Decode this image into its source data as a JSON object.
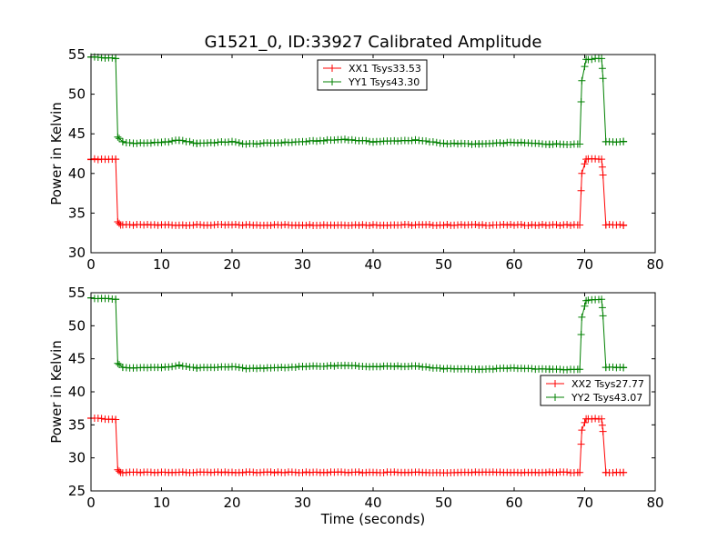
{
  "chart_data": [
    {
      "type": "line",
      "title": "G1521_0, ID:33927 Calibrated Amplitude",
      "xlabel": "",
      "ylabel": "Power in Kelvin",
      "xlim": [
        0,
        80
      ],
      "ylim": [
        30,
        55
      ],
      "xticks": [
        "0",
        "10",
        "20",
        "30",
        "40",
        "50",
        "60",
        "70",
        "80"
      ],
      "yticks": [
        "30",
        "35",
        "40",
        "45",
        "50",
        "55"
      ],
      "legend_position": "top-center",
      "series": [
        {
          "name": "XX1 Tsys33.53",
          "color": "#ff0000",
          "marker": "+",
          "x": [
            0,
            3.5,
            3.8,
            4.2,
            69.3,
            69.6,
            70.2,
            72.4,
            72.6,
            73,
            75.5
          ],
          "y": [
            41.8,
            41.8,
            33.9,
            33.5,
            33.5,
            40,
            41.8,
            41.8,
            39.8,
            33.5,
            33.5
          ]
        },
        {
          "name": "YY1 Tsys43.30",
          "color": "#008000",
          "marker": "+",
          "x": [
            0,
            3.5,
            3.8,
            4.5,
            6,
            10,
            12.5,
            15,
            20,
            22,
            30,
            36,
            40,
            46,
            50,
            55,
            60,
            65,
            69.3,
            69.6,
            70.2,
            72.4,
            72.6,
            73,
            75.5
          ],
          "y": [
            54.7,
            54.5,
            44.6,
            44.0,
            43.8,
            43.9,
            44.2,
            43.8,
            44.0,
            43.7,
            44.0,
            44.3,
            44.0,
            44.2,
            43.8,
            43.7,
            43.9,
            43.7,
            43.7,
            51.7,
            54.4,
            54.5,
            52.0,
            44.0,
            44.0
          ]
        }
      ]
    },
    {
      "type": "line",
      "title": "",
      "xlabel": "Time (seconds)",
      "ylabel": "Power in Kelvin",
      "xlim": [
        0,
        80
      ],
      "ylim": [
        25,
        55
      ],
      "xticks": [
        "0",
        "10",
        "20",
        "30",
        "40",
        "50",
        "60",
        "70",
        "80"
      ],
      "yticks": [
        "25",
        "30",
        "35",
        "40",
        "45",
        "50",
        "55"
      ],
      "legend_position": "center-right",
      "series": [
        {
          "name": "XX2 Tsys27.77",
          "color": "#ff0000",
          "marker": "+",
          "x": [
            0,
            3.5,
            3.8,
            4.2,
            69.3,
            69.6,
            70.2,
            72.4,
            72.6,
            73,
            75.5
          ],
          "y": [
            36.0,
            35.8,
            28.2,
            27.8,
            27.8,
            34.2,
            35.9,
            35.9,
            34.0,
            27.8,
            27.8
          ]
        },
        {
          "name": "YY2 Tsys43.07",
          "color": "#008000",
          "marker": "+",
          "x": [
            0,
            3.5,
            3.8,
            4.5,
            6,
            10,
            12.5,
            15,
            20,
            22,
            30,
            36,
            40,
            46,
            50,
            55,
            60,
            65,
            69.3,
            69.6,
            70.2,
            72.4,
            72.6,
            73,
            75.5
          ],
          "y": [
            54.2,
            54.0,
            44.3,
            43.7,
            43.6,
            43.7,
            44.0,
            43.6,
            43.8,
            43.5,
            43.8,
            44.0,
            43.8,
            43.9,
            43.5,
            43.4,
            43.6,
            43.4,
            43.4,
            51.3,
            53.8,
            54.0,
            51.5,
            43.7,
            43.7
          ]
        }
      ]
    }
  ]
}
